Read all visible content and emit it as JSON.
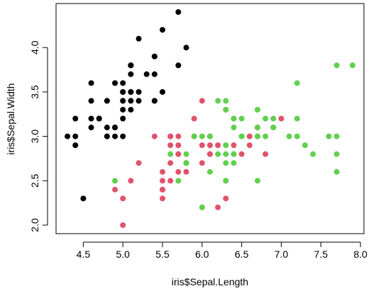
{
  "chart_data": {
    "type": "scatter",
    "x_label": "iris$Sepal.Length",
    "y_label": "iris$Sepal.Width",
    "xlim": [
      4.156,
      8.044
    ],
    "ylim": [
      1.904,
      4.496
    ],
    "xticks": [
      4.5,
      {
        "value": 5,
        "label": "5.0"
      },
      5.5,
      {
        "value": 6,
        "label": "6.0"
      },
      6.5,
      {
        "value": 7,
        "label": "7.0"
      },
      7.5,
      {
        "value": 8,
        "label": "8.0"
      }
    ],
    "yticks": [
      {
        "value": 2,
        "label": "2.0"
      },
      2.5,
      {
        "value": 3,
        "label": "3.0"
      },
      3.5,
      {
        "value": 4,
        "label": "4.0"
      }
    ],
    "series": [
      {
        "color": "#000000",
        "x": [
          5.1,
          4.9,
          4.7,
          4.6,
          5.0,
          5.4,
          4.6,
          5.0,
          4.4,
          4.9,
          5.4,
          4.8,
          4.8,
          4.3,
          5.8,
          5.7,
          5.4,
          5.1,
          5.7,
          5.1,
          5.4,
          5.1,
          4.6,
          5.1,
          4.8,
          5.0,
          5.0,
          5.2,
          5.2,
          4.7,
          4.8,
          5.4,
          5.2,
          5.5,
          4.9,
          5.0,
          5.5,
          4.9,
          4.4,
          5.1,
          5.0,
          4.5,
          4.4,
          5.0,
          5.1,
          4.8,
          5.1,
          4.6,
          5.3,
          5.0
        ],
        "y": [
          3.5,
          3.0,
          3.2,
          3.1,
          3.6,
          3.9,
          3.4,
          3.4,
          2.9,
          3.1,
          3.7,
          3.4,
          3.0,
          3.0,
          4.0,
          4.4,
          3.9,
          3.5,
          3.8,
          3.8,
          3.4,
          3.7,
          3.6,
          3.3,
          3.4,
          3.0,
          3.4,
          3.5,
          3.4,
          3.2,
          3.1,
          3.4,
          4.1,
          4.2,
          3.1,
          3.2,
          3.5,
          3.6,
          3.0,
          3.4,
          3.5,
          2.3,
          3.2,
          3.5,
          3.8,
          3.0,
          3.8,
          3.2,
          3.7,
          3.3
        ]
      },
      {
        "color": "#DF536B",
        "x": [
          7.0,
          6.4,
          6.9,
          5.5,
          6.5,
          5.7,
          6.3,
          4.9,
          6.6,
          5.2,
          5.0,
          5.9,
          6.0,
          6.1,
          5.6,
          6.7,
          5.6,
          5.8,
          6.2,
          5.6,
          5.9,
          6.1,
          6.3,
          6.1,
          6.4,
          6.6,
          6.8,
          6.7,
          6.0,
          5.7,
          5.5,
          5.5,
          5.8,
          6.0,
          5.4,
          6.0,
          6.7,
          6.3,
          5.6,
          5.5,
          5.5,
          6.1,
          5.8,
          5.0,
          5.6,
          5.7,
          5.7,
          6.2,
          5.1,
          5.7
        ],
        "y": [
          3.2,
          3.2,
          3.1,
          2.3,
          2.8,
          2.8,
          3.3,
          2.4,
          2.9,
          2.7,
          2.0,
          3.0,
          2.2,
          2.9,
          2.9,
          3.1,
          3.0,
          2.7,
          2.2,
          2.5,
          3.2,
          2.8,
          2.5,
          2.8,
          2.9,
          3.0,
          2.8,
          3.0,
          2.9,
          2.6,
          2.4,
          2.4,
          2.7,
          2.7,
          3.0,
          3.4,
          3.1,
          2.3,
          3.0,
          2.5,
          2.6,
          3.0,
          2.6,
          2.3,
          2.7,
          3.0,
          2.9,
          2.9,
          2.5,
          2.8
        ]
      },
      {
        "color": "#61D04F",
        "x": [
          6.3,
          5.8,
          7.1,
          6.3,
          6.5,
          7.6,
          4.9,
          7.3,
          6.7,
          7.2,
          6.5,
          6.4,
          6.8,
          5.7,
          5.8,
          6.4,
          6.5,
          7.7,
          7.7,
          6.0,
          6.9,
          5.6,
          7.7,
          6.3,
          6.7,
          7.2,
          6.2,
          6.1,
          6.4,
          7.2,
          7.4,
          7.9,
          6.4,
          6.3,
          6.1,
          7.7,
          6.3,
          6.4,
          6.0,
          6.9,
          6.7,
          6.9,
          5.8,
          6.8,
          6.7,
          6.7,
          6.3,
          6.5,
          6.2,
          5.9
        ],
        "y": [
          3.3,
          2.7,
          3.0,
          2.9,
          3.0,
          3.0,
          2.5,
          2.9,
          2.5,
          3.6,
          3.2,
          2.7,
          3.0,
          2.5,
          2.8,
          3.2,
          3.0,
          3.8,
          2.6,
          2.2,
          3.2,
          2.8,
          2.8,
          2.7,
          3.3,
          3.2,
          2.8,
          3.0,
          2.8,
          3.0,
          2.8,
          3.8,
          2.8,
          2.8,
          2.6,
          3.0,
          3.4,
          3.1,
          3.0,
          3.1,
          3.1,
          3.1,
          2.7,
          3.2,
          3.3,
          3.0,
          2.5,
          3.0,
          3.4,
          3.0
        ]
      }
    ]
  }
}
